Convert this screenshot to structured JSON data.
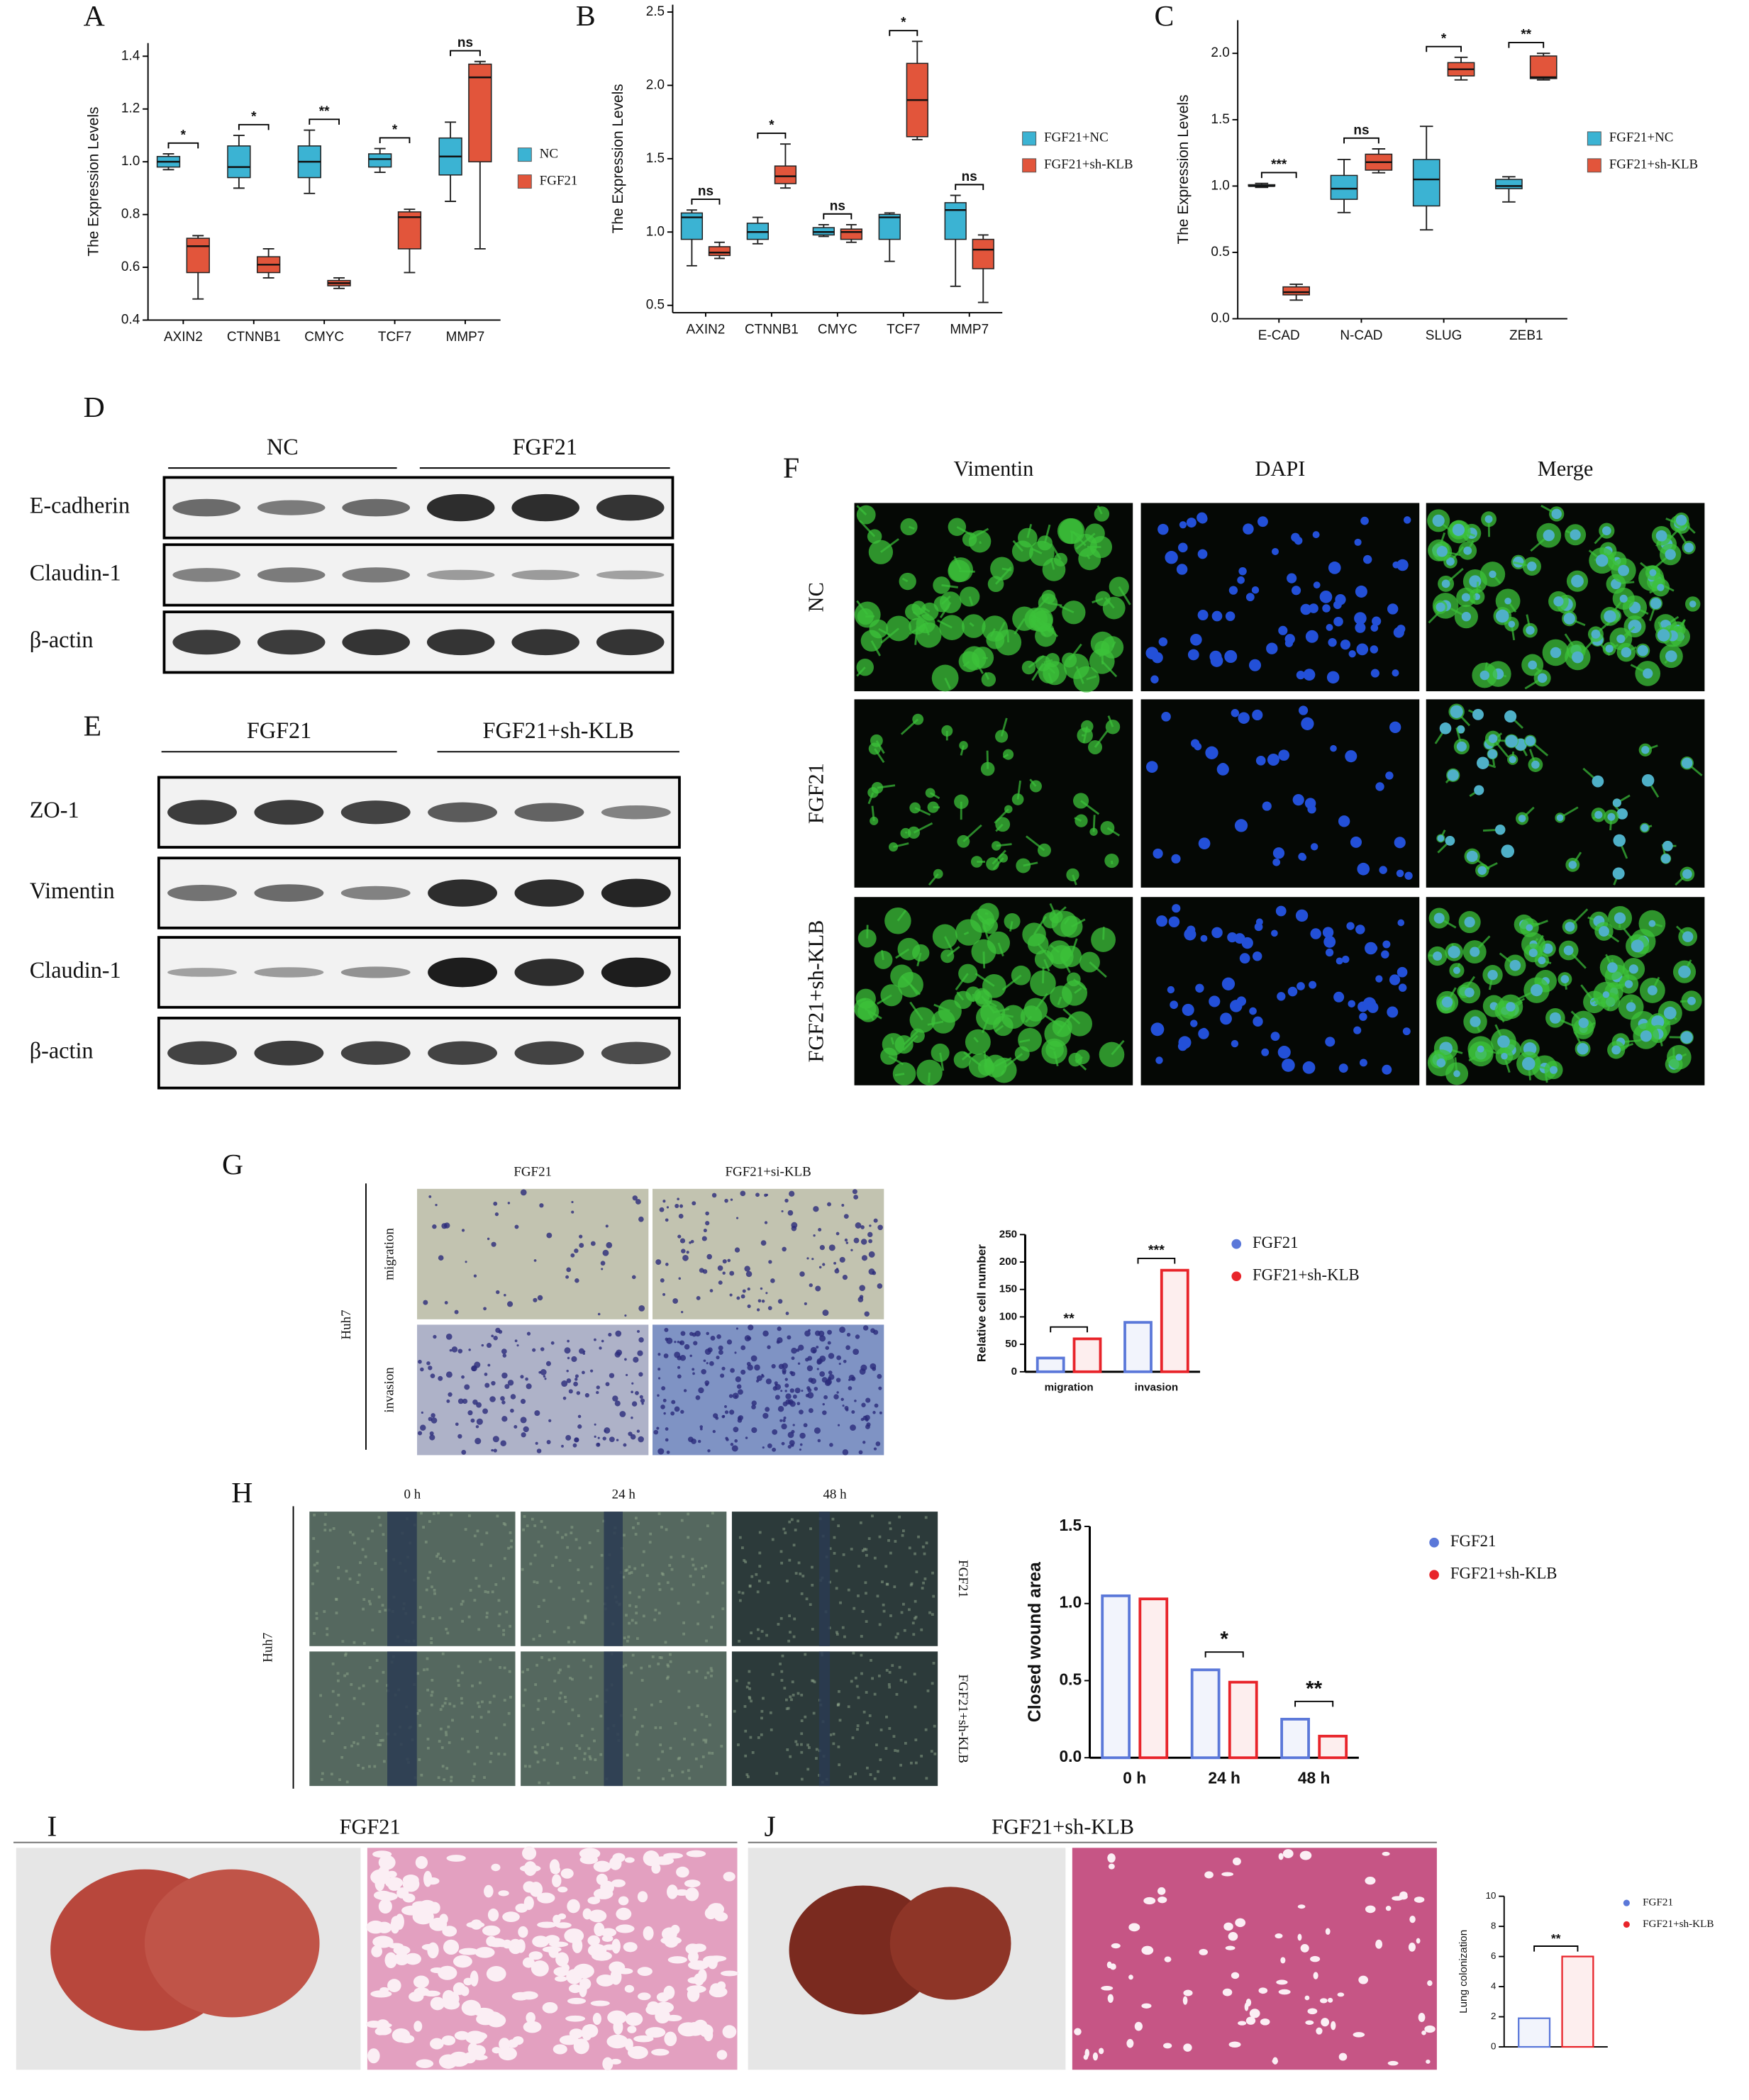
{
  "chart_data": [
    {
      "type": "box",
      "y_label": "The Expression Levels",
      "categories": [
        "AXIN2",
        "CTNNB1",
        "CMYC",
        "TCF7",
        "MMP7"
      ],
      "series": [
        {
          "name": "NC",
          "color": "#3bb3d3",
          "boxes": [
            {
              "min": 0.97,
              "q1": 0.98,
              "median": 1.0,
              "q3": 1.02,
              "max": 1.03
            },
            {
              "min": 0.9,
              "q1": 0.94,
              "median": 0.98,
              "q3": 1.06,
              "max": 1.1
            },
            {
              "min": 0.88,
              "q1": 0.94,
              "median": 1.0,
              "q3": 1.06,
              "max": 1.12
            },
            {
              "min": 0.96,
              "q1": 0.98,
              "median": 1.01,
              "q3": 1.03,
              "max": 1.05
            },
            {
              "min": 0.85,
              "q1": 0.95,
              "median": 1.02,
              "q3": 1.09,
              "max": 1.15
            }
          ]
        },
        {
          "name": "FGF21",
          "color": "#e2553b",
          "boxes": [
            {
              "min": 0.48,
              "q1": 0.58,
              "median": 0.68,
              "q3": 0.71,
              "max": 0.72
            },
            {
              "min": 0.56,
              "q1": 0.58,
              "median": 0.61,
              "q3": 0.64,
              "max": 0.67
            },
            {
              "min": 0.52,
              "q1": 0.53,
              "median": 0.54,
              "q3": 0.55,
              "max": 0.56
            },
            {
              "min": 0.58,
              "q1": 0.67,
              "median": 0.79,
              "q3": 0.81,
              "max": 0.82
            },
            {
              "min": 0.67,
              "q1": 1.0,
              "median": 1.32,
              "q3": 1.37,
              "max": 1.38
            }
          ]
        }
      ],
      "significance": [
        "*",
        "*",
        "**",
        "*",
        "ns"
      ],
      "ylim": [
        0.4,
        1.45
      ],
      "yticks": [
        0.4,
        0.6,
        0.8,
        {
          "value": 1,
          "label": "1.0"
        },
        1.2,
        1.4
      ],
      "legend": "right"
    },
    {
      "type": "box",
      "y_label": "The Expression Levels",
      "categories": [
        "AXIN2",
        "CTNNB1",
        "CMYC",
        "TCF7",
        "MMP7"
      ],
      "series": [
        {
          "name": "FGF21+NC",
          "color": "#3bb3d3",
          "boxes": [
            {
              "min": 0.77,
              "q1": 0.95,
              "median": 1.1,
              "q3": 1.13,
              "max": 1.15
            },
            {
              "min": 0.92,
              "q1": 0.95,
              "median": 1.0,
              "q3": 1.06,
              "max": 1.1
            },
            {
              "min": 0.97,
              "q1": 0.98,
              "median": 1.0,
              "q3": 1.03,
              "max": 1.05
            },
            {
              "min": 0.8,
              "q1": 0.95,
              "median": 1.1,
              "q3": 1.12,
              "max": 1.13
            },
            {
              "min": 0.63,
              "q1": 0.95,
              "median": 1.15,
              "q3": 1.2,
              "max": 1.25
            }
          ]
        },
        {
          "name": "FGF21+sh-KLB",
          "color": "#e2553b",
          "boxes": [
            {
              "min": 0.82,
              "q1": 0.84,
              "median": 0.86,
              "q3": 0.9,
              "max": 0.93
            },
            {
              "min": 1.3,
              "q1": 1.33,
              "median": 1.38,
              "q3": 1.45,
              "max": 1.6
            },
            {
              "min": 0.93,
              "q1": 0.95,
              "median": 1.0,
              "q3": 1.02,
              "max": 1.05
            },
            {
              "min": 1.63,
              "q1": 1.65,
              "median": 1.9,
              "q3": 2.15,
              "max": 2.3
            },
            {
              "min": 0.52,
              "q1": 0.75,
              "median": 0.88,
              "q3": 0.95,
              "max": 0.98
            }
          ]
        }
      ],
      "significance": [
        "ns",
        "*",
        "ns",
        "*",
        "ns"
      ],
      "ylim": [
        0.45,
        2.55
      ],
      "yticks": [
        0.5,
        {
          "value": 1,
          "label": "1.0"
        },
        1.5,
        {
          "value": 2,
          "label": "2.0"
        },
        2.5
      ],
      "legend": "right"
    },
    {
      "type": "box",
      "y_label": "The Expression Levels",
      "categories": [
        "E-CAD",
        "N-CAD",
        "SLUG",
        "ZEB1"
      ],
      "series": [
        {
          "name": "FGF21+NC",
          "color": "#3bb3d3",
          "boxes": [
            {
              "min": 0.99,
              "q1": 1.0,
              "median": 1.0,
              "q3": 1.01,
              "max": 1.02
            },
            {
              "min": 0.8,
              "q1": 0.9,
              "median": 0.98,
              "q3": 1.08,
              "max": 1.2
            },
            {
              "min": 0.67,
              "q1": 0.85,
              "median": 1.05,
              "q3": 1.2,
              "max": 1.45
            },
            {
              "min": 0.88,
              "q1": 0.98,
              "median": 1.0,
              "q3": 1.05,
              "max": 1.07
            }
          ]
        },
        {
          "name": "FGF21+sh-KLB",
          "color": "#e2553b",
          "boxes": [
            {
              "min": 0.14,
              "q1": 0.18,
              "median": 0.2,
              "q3": 0.24,
              "max": 0.26
            },
            {
              "min": 1.1,
              "q1": 1.12,
              "median": 1.18,
              "q3": 1.24,
              "max": 1.28
            },
            {
              "min": 1.8,
              "q1": 1.83,
              "median": 1.88,
              "q3": 1.93,
              "max": 1.97
            },
            {
              "min": 1.8,
              "q1": 1.81,
              "median": 1.82,
              "q3": 1.98,
              "max": 2.0
            }
          ]
        }
      ],
      "significance": [
        "***",
        "ns",
        "*",
        "**"
      ],
      "ylim": [
        0,
        2.25
      ],
      "yticks": [
        {
          "value": 0,
          "label": "0.0"
        },
        0.5,
        {
          "value": 1,
          "label": "1.0"
        },
        1.5,
        {
          "value": 2,
          "label": "2.0"
        }
      ],
      "legend": "right"
    },
    {
      "type": "bar",
      "y_label": "Relative cell number",
      "categories": [
        "migration",
        "invasion"
      ],
      "series": [
        {
          "name": "FGF21",
          "color": "#5b78d9",
          "values": [
            25,
            90
          ]
        },
        {
          "name": "FGF21+sh-KLB",
          "color": "#e8242a",
          "values": [
            60,
            185
          ]
        }
      ],
      "significance": [
        "**",
        "***"
      ],
      "ylim": [
        0,
        250
      ],
      "yticks": [
        0,
        50,
        100,
        150,
        200,
        250
      ],
      "legend": "right"
    },
    {
      "type": "bar",
      "y_label": "Closed wound area",
      "categories": [
        "0 h",
        "24 h",
        "48 h"
      ],
      "series": [
        {
          "name": "FGF21",
          "color": "#5b78d9",
          "values": [
            1.05,
            0.57,
            0.25
          ]
        },
        {
          "name": "FGF21+sh-KLB",
          "color": "#e8242a",
          "values": [
            1.03,
            0.49,
            0.14
          ]
        }
      ],
      "significance": [
        null,
        "*",
        "**"
      ],
      "ylim": [
        0,
        1.5
      ],
      "yticks": [
        {
          "value": 0,
          "label": "0.0"
        },
        0.5,
        {
          "value": 1,
          "label": "1.0"
        },
        1.5
      ],
      "legend": "right"
    },
    {
      "type": "bar",
      "y_label": "Lung colonization",
      "categories": [
        null
      ],
      "series": [
        {
          "name": "FGF21",
          "color": "#5b78d9",
          "values": [
            1.9
          ]
        },
        {
          "name": "FGF21+sh-KLB",
          "color": "#e8242a",
          "values": [
            6.0
          ]
        }
      ],
      "significance": [
        "**"
      ],
      "ylim": [
        0,
        10
      ],
      "yticks": [
        0,
        2,
        4,
        6,
        8,
        10
      ],
      "legend": "right"
    }
  ],
  "figure": {
    "letters": [
      "A",
      "B",
      "C",
      "D",
      "E",
      "F",
      "G",
      "H",
      "I",
      "J"
    ],
    "blot_d": {
      "groups": [
        "NC",
        "FGF21"
      ],
      "rows": [
        "E-cadherin",
        "Claudin-1",
        "β-actin"
      ]
    },
    "blot_e": {
      "groups": [
        "FGF21",
        "FGF21+sh-KLB"
      ],
      "rows": [
        "ZO-1",
        "Vimentin",
        "Claudin-1",
        "β-actin"
      ]
    },
    "if_f": {
      "columns": [
        "Vimentin",
        "DAPI",
        "Merge"
      ],
      "rows": [
        "NC",
        "FGF21",
        "FGF21+sh-KLB"
      ]
    },
    "transwell_g": {
      "columns": [
        "FGF21",
        "FGF21+si-KLB"
      ],
      "rows": [
        "migration",
        "invasion"
      ],
      "cell_line": "Huh7"
    },
    "wound_h": {
      "columns": [
        "0 h",
        "24 h",
        "48 h"
      ],
      "rows": [
        "FGF21",
        "FGF21+sh-KLB"
      ],
      "cell_line": "Huh7"
    },
    "lung_i": {
      "title": "FGF21"
    },
    "lung_j": {
      "title": "FGF21+sh-KLB"
    }
  }
}
